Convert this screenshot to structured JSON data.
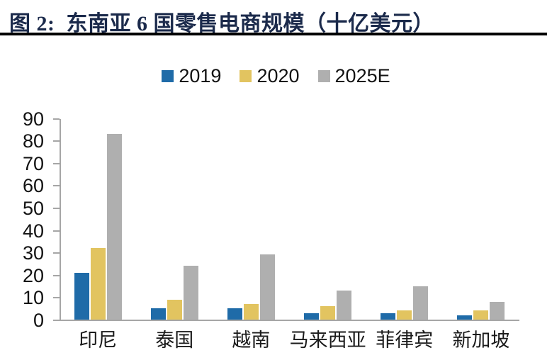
{
  "figure": {
    "title": "图 2:  东南亚 6 国零售电商规模（十亿美元）"
  },
  "chart_data": {
    "type": "bar",
    "title": "东南亚 6 国零售电商规模（十亿美元）",
    "categories": [
      "印尼",
      "泰国",
      "越南",
      "马来西亚",
      "菲律宾",
      "新加坡"
    ],
    "series": [
      {
        "name": "2019",
        "color": "#1F6BA8",
        "values": [
          21,
          5,
          5,
          3,
          3,
          2
        ]
      },
      {
        "name": "2020",
        "color": "#E2C460",
        "values": [
          32,
          9,
          7,
          6,
          4,
          4
        ]
      },
      {
        "name": "2025E",
        "color": "#AFAFAF",
        "values": [
          83,
          24,
          29,
          13,
          15,
          8
        ]
      }
    ],
    "xlabel": "",
    "ylabel": "",
    "ylim": [
      0,
      90
    ],
    "yticks": [
      0,
      10,
      20,
      30,
      40,
      50,
      60,
      70,
      80,
      90
    ],
    "grid": false,
    "legend_position": "top-center"
  },
  "colors": {
    "title_text": "#1B2A4B",
    "divider": "#000000",
    "axis": "#A6A6A6",
    "tick_text": "#121212"
  }
}
